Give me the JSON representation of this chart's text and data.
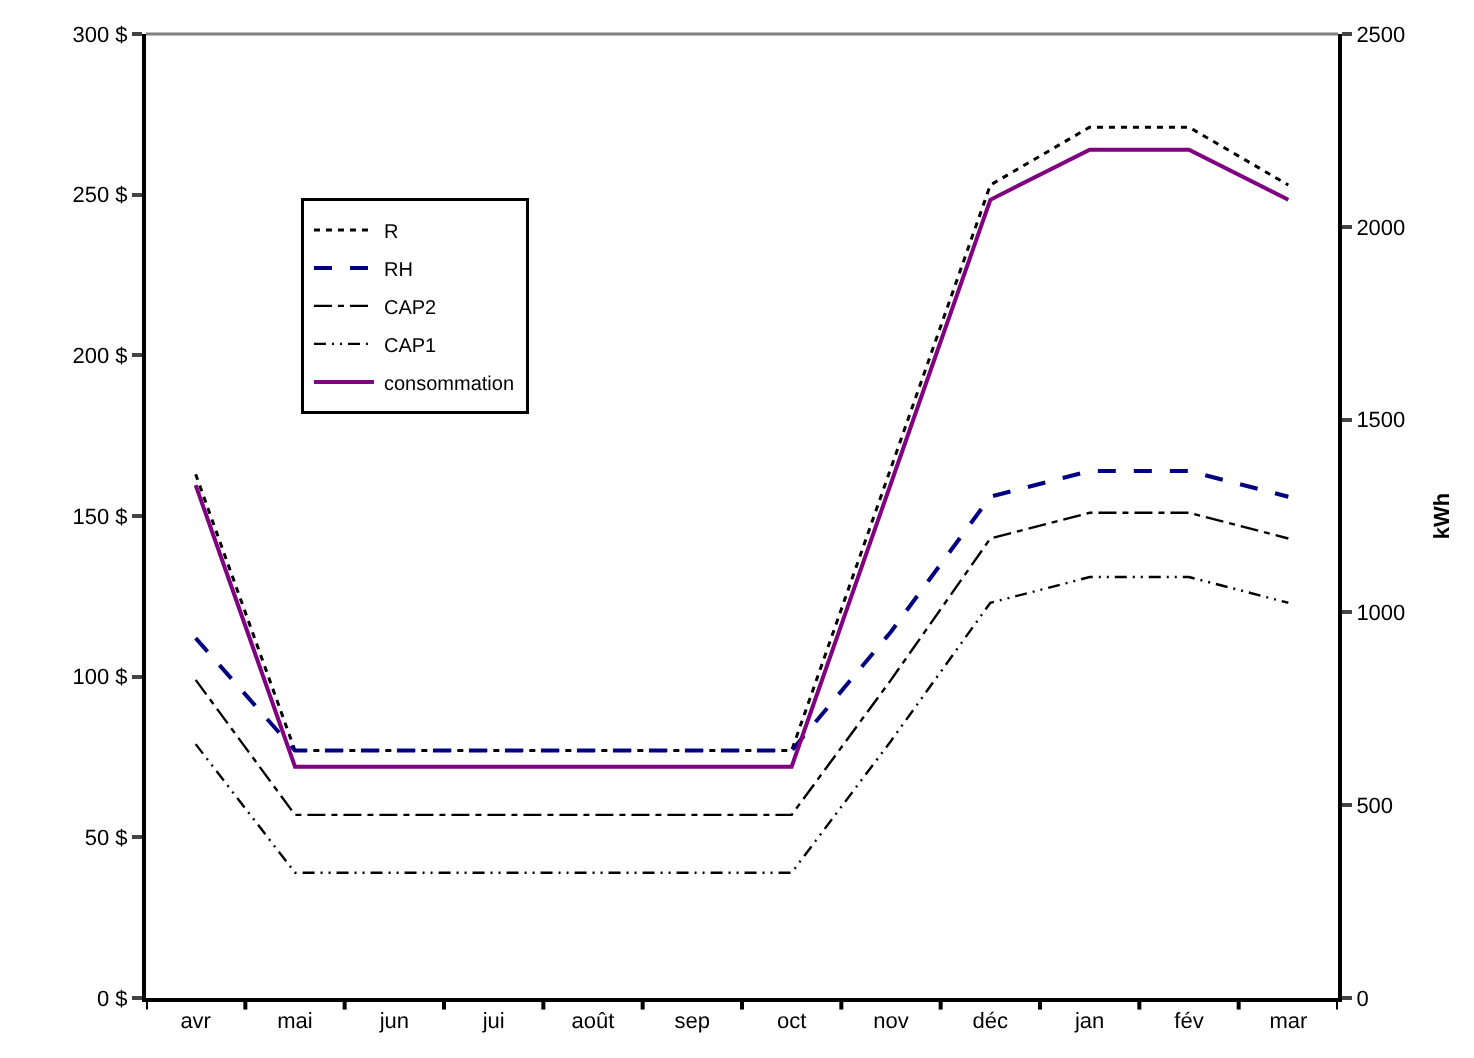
{
  "chart_data": {
    "type": "line",
    "categories": [
      "avr",
      "mai",
      "jun",
      "jui",
      "août",
      "sep",
      "oct",
      "nov",
      "déc",
      "jan",
      "fév",
      "mar"
    ],
    "series": [
      {
        "name": "R",
        "color": "#000000",
        "line_style": "dotted",
        "values": [
          163,
          77,
          77,
          77,
          77,
          77,
          77,
          165,
          253,
          271,
          271,
          253
        ]
      },
      {
        "name": "RH",
        "color": "#000080",
        "line_style": "dashed",
        "values": [
          112,
          77,
          77,
          77,
          77,
          77,
          77,
          114,
          156,
          164,
          164,
          156
        ]
      },
      {
        "name": "CAP2",
        "color": "#000000",
        "line_style": "dashdot",
        "values": [
          99,
          57,
          57,
          57,
          57,
          57,
          57,
          99,
          143,
          151,
          151,
          143
        ]
      },
      {
        "name": "CAP1",
        "color": "#000000",
        "line_style": "dashdotdot",
        "values": [
          79,
          39,
          39,
          39,
          39,
          39,
          39,
          80,
          123,
          131,
          131,
          123
        ]
      },
      {
        "name": "consommation",
        "color": "#800080",
        "line_style": "solid",
        "axis": "y2",
        "values": [
          1330,
          600,
          600,
          600,
          600,
          600,
          600,
          1335,
          2070,
          2200,
          2200,
          2070
        ]
      }
    ],
    "ylim": [
      0,
      300
    ],
    "yticks": [
      {
        "value": 0,
        "label": "0 $"
      },
      {
        "value": 50,
        "label": "50 $"
      },
      {
        "value": 100,
        "label": "100 $"
      },
      {
        "value": 150,
        "label": "150 $"
      },
      {
        "value": 200,
        "label": "200 $"
      },
      {
        "value": 250,
        "label": "250 $"
      },
      {
        "value": 300,
        "label": "300 $"
      }
    ],
    "y2lim": [
      0,
      2500
    ],
    "y2ticks": [
      0,
      500,
      1000,
      1500,
      2000,
      2500
    ],
    "y2label": "kWh",
    "legend": "top left",
    "marker": "none"
  }
}
